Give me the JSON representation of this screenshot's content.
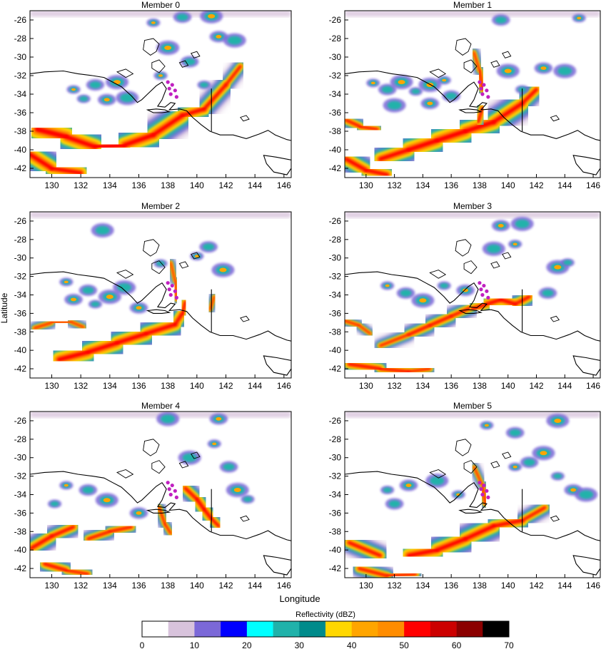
{
  "figure": {
    "y_axis_label": "Latitude",
    "x_axis_label": "Longitude",
    "x_ticks": [
      "130",
      "132",
      "134",
      "136",
      "138",
      "140",
      "142",
      "144",
      "146"
    ],
    "y_ticks": [
      "-26",
      "-28",
      "-30",
      "-32",
      "-34",
      "-36",
      "-38",
      "-40",
      "-42"
    ],
    "lon_range": [
      128.5,
      146.5
    ],
    "lat_range": [
      -43,
      -25
    ]
  },
  "panels": [
    {
      "title": "Member 0"
    },
    {
      "title": "Member 1"
    },
    {
      "title": "Member 2"
    },
    {
      "title": "Member 3"
    },
    {
      "title": "Member 4"
    },
    {
      "title": "Member 5"
    }
  ],
  "colorbar": {
    "title": "Reflectivity (dBZ)",
    "tick_labels": [
      "0",
      "10",
      "20",
      "30",
      "40",
      "50",
      "60",
      "70"
    ],
    "bins": [
      0,
      5,
      10,
      15,
      20,
      25,
      30,
      35,
      40,
      45,
      50,
      55,
      60,
      65,
      70
    ],
    "colors": [
      "#ffffff",
      "#d8c3dc",
      "#7b68d8",
      "#0000ff",
      "#00ffff",
      "#20b2aa",
      "#008b8b",
      "#ffd700",
      "#ffa500",
      "#ff8c00",
      "#ff0000",
      "#cc0000",
      "#8b0000",
      "#000000"
    ]
  },
  "station_marker_color": "#c020c0"
}
